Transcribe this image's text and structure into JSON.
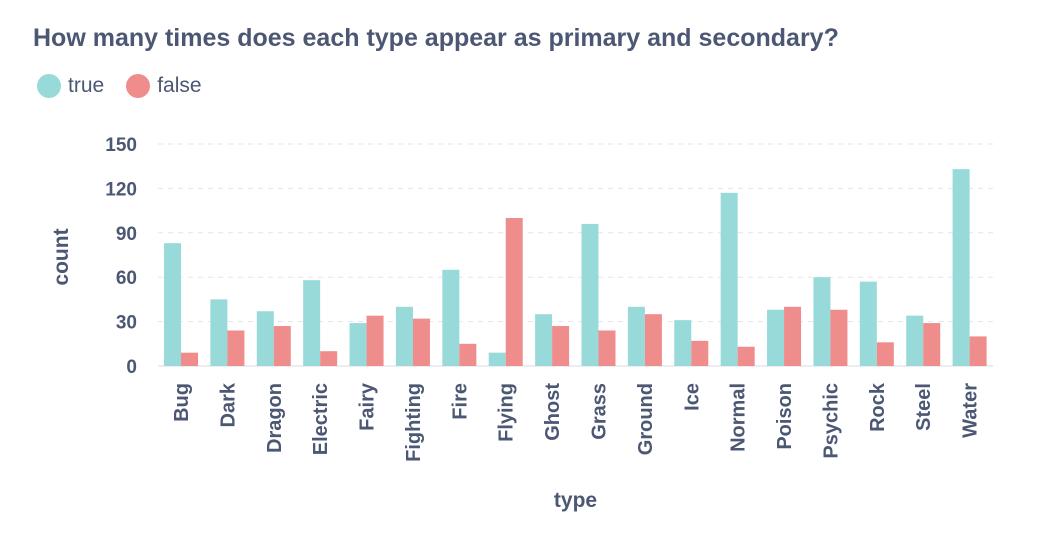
{
  "title": "How many times does each type appear as primary and secondary?",
  "legend": [
    {
      "label": "true",
      "color": "#98d9d9"
    },
    {
      "label": "false",
      "color": "#ef8c8c"
    }
  ],
  "chart_data": {
    "type": "bar",
    "title": "How many times does each type appear as primary and secondary?",
    "xlabel": "type",
    "ylabel": "count",
    "ylim": [
      0,
      150
    ],
    "yticks": [
      0,
      30,
      60,
      90,
      120,
      150
    ],
    "grid": true,
    "legend_position": "top-left",
    "categories": [
      "Bug",
      "Dark",
      "Dragon",
      "Electric",
      "Fairy",
      "Fighting",
      "Fire",
      "Flying",
      "Ghost",
      "Grass",
      "Ground",
      "Ice",
      "Normal",
      "Poison",
      "Psychic",
      "Rock",
      "Steel",
      "Water"
    ],
    "series": [
      {
        "name": "true",
        "color": "#98d9d9",
        "values": [
          83,
          45,
          37,
          58,
          29,
          40,
          65,
          9,
          35,
          96,
          40,
          31,
          117,
          38,
          60,
          57,
          34,
          133
        ]
      },
      {
        "name": "false",
        "color": "#ef8c8c",
        "values": [
          9,
          24,
          27,
          10,
          34,
          32,
          15,
          100,
          27,
          24,
          35,
          17,
          13,
          40,
          38,
          16,
          29,
          20
        ]
      }
    ]
  }
}
